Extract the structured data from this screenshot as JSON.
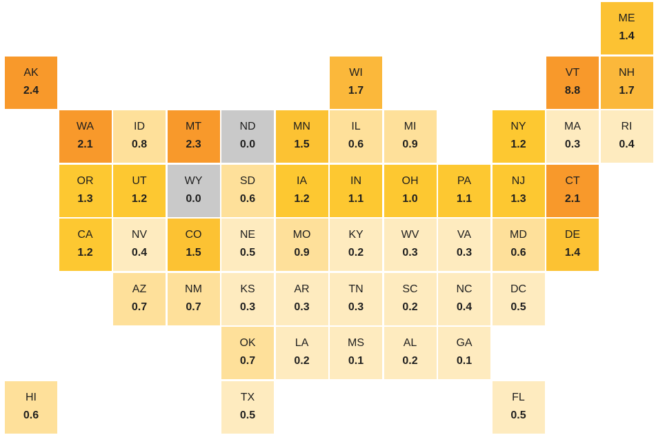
{
  "tiles": [
    {
      "state": "ME",
      "value": "1.4",
      "color": "#fcc233"
    },
    {
      "state": "AK",
      "value": "2.4",
      "color": "#f8992b"
    },
    {
      "state": "WI",
      "value": "1.7",
      "color": "#fbb83b"
    },
    {
      "state": "VT",
      "value": "8.8",
      "color": "#f8992b"
    },
    {
      "state": "NH",
      "value": "1.7",
      "color": "#fbb83b"
    },
    {
      "state": "WA",
      "value": "2.1",
      "color": "#f8992b"
    },
    {
      "state": "ID",
      "value": "0.8",
      "color": "#fee09a"
    },
    {
      "state": "MT",
      "value": "2.3",
      "color": "#f8992b"
    },
    {
      "state": "ND",
      "value": "0.0",
      "color": "#c9c9c9"
    },
    {
      "state": "MN",
      "value": "1.5",
      "color": "#fcc233"
    },
    {
      "state": "IL",
      "value": "0.6",
      "color": "#fee09a"
    },
    {
      "state": "MI",
      "value": "0.9",
      "color": "#fee09a"
    },
    {
      "state": "NY",
      "value": "1.2",
      "color": "#fdc831"
    },
    {
      "state": "MA",
      "value": "0.3",
      "color": "#feebbf"
    },
    {
      "state": "RI",
      "value": "0.4",
      "color": "#feebbf"
    },
    {
      "state": "OR",
      "value": "1.3",
      "color": "#fdc831"
    },
    {
      "state": "UT",
      "value": "1.2",
      "color": "#fdc831"
    },
    {
      "state": "WY",
      "value": "0.0",
      "color": "#c9c9c9"
    },
    {
      "state": "SD",
      "value": "0.6",
      "color": "#fee09a"
    },
    {
      "state": "IA",
      "value": "1.2",
      "color": "#fdc831"
    },
    {
      "state": "IN",
      "value": "1.1",
      "color": "#fdc831"
    },
    {
      "state": "OH",
      "value": "1.0",
      "color": "#fdc831"
    },
    {
      "state": "PA",
      "value": "1.1",
      "color": "#fdc831"
    },
    {
      "state": "NJ",
      "value": "1.3",
      "color": "#fdc831"
    },
    {
      "state": "CT",
      "value": "2.1",
      "color": "#f8992b"
    },
    {
      "state": "CA",
      "value": "1.2",
      "color": "#fdc831"
    },
    {
      "state": "NV",
      "value": "0.4",
      "color": "#feebbf"
    },
    {
      "state": "CO",
      "value": "1.5",
      "color": "#fcc233"
    },
    {
      "state": "NE",
      "value": "0.5",
      "color": "#feebbf"
    },
    {
      "state": "MO",
      "value": "0.9",
      "color": "#fee09a"
    },
    {
      "state": "KY",
      "value": "0.2",
      "color": "#feebbf"
    },
    {
      "state": "WV",
      "value": "0.3",
      "color": "#feebbf"
    },
    {
      "state": "VA",
      "value": "0.3",
      "color": "#feebbf"
    },
    {
      "state": "MD",
      "value": "0.6",
      "color": "#fee09a"
    },
    {
      "state": "DE",
      "value": "1.4",
      "color": "#fcc233"
    },
    {
      "state": "AZ",
      "value": "0.7",
      "color": "#fee09a"
    },
    {
      "state": "NM",
      "value": "0.7",
      "color": "#fee09a"
    },
    {
      "state": "KS",
      "value": "0.3",
      "color": "#feebbf"
    },
    {
      "state": "AR",
      "value": "0.3",
      "color": "#feebbf"
    },
    {
      "state": "TN",
      "value": "0.3",
      "color": "#feebbf"
    },
    {
      "state": "SC",
      "value": "0.2",
      "color": "#feebbf"
    },
    {
      "state": "NC",
      "value": "0.4",
      "color": "#feebbf"
    },
    {
      "state": "DC",
      "value": "0.5",
      "color": "#feebbf"
    },
    {
      "state": "OK",
      "value": "0.7",
      "color": "#fee09a"
    },
    {
      "state": "LA",
      "value": "0.2",
      "color": "#feebbf"
    },
    {
      "state": "MS",
      "value": "0.1",
      "color": "#feebbf"
    },
    {
      "state": "AL",
      "value": "0.2",
      "color": "#feebbf"
    },
    {
      "state": "GA",
      "value": "0.1",
      "color": "#feebbf"
    },
    {
      "state": "HI",
      "value": "0.6",
      "color": "#fee09a"
    },
    {
      "state": "TX",
      "value": "0.5",
      "color": "#feebbf"
    },
    {
      "state": "FL",
      "value": "0.5",
      "color": "#feebbf"
    }
  ]
}
